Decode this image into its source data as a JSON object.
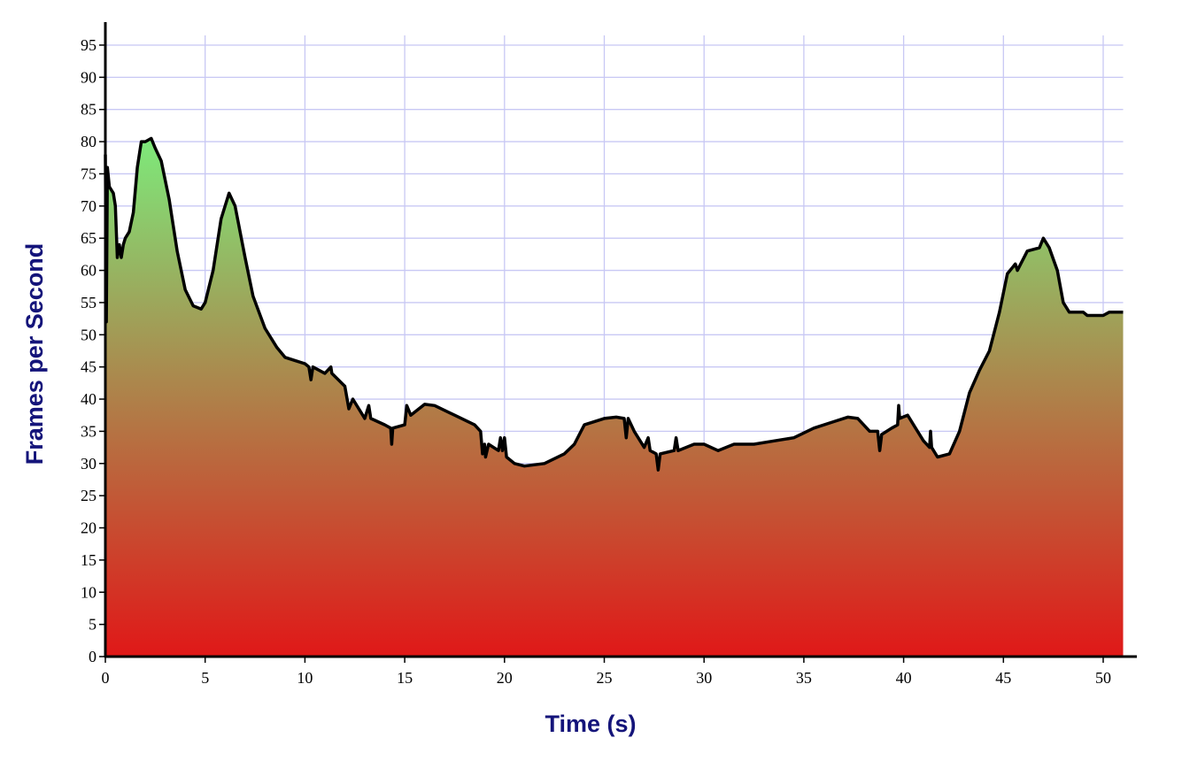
{
  "chart_data": {
    "type": "area",
    "x_label": "Time (s)",
    "y_label": "Frames per Second",
    "x": [
      0,
      0.05,
      0.1,
      0.2,
      0.4,
      0.5,
      0.6,
      0.7,
      0.8,
      0.9,
      1.0,
      1.2,
      1.4,
      1.6,
      1.8,
      2.0,
      2.3,
      2.5,
      2.8,
      3.2,
      3.6,
      4.0,
      4.4,
      4.8,
      5.0,
      5.4,
      5.8,
      6.2,
      6.5,
      7.0,
      7.4,
      8.0,
      8.6,
      9.0,
      9.5,
      10.0,
      10.2,
      10.3,
      10.4,
      11.0,
      11.3,
      11.35,
      12.0,
      12.2,
      12.4,
      13.0,
      13.2,
      13.3,
      14.0,
      14.3,
      14.35,
      14.4,
      15.0,
      15.1,
      15.3,
      16.0,
      16.5,
      17.5,
      18.5,
      18.8,
      18.9,
      19.0,
      19.05,
      19.2,
      19.7,
      19.8,
      19.9,
      20.0,
      20.1,
      20.5,
      21.0,
      22.0,
      23.0,
      23.5,
      24.0,
      25.0,
      25.6,
      26.0,
      26.1,
      26.2,
      26.5,
      27.0,
      27.2,
      27.3,
      27.6,
      27.7,
      27.8,
      28.5,
      28.6,
      28.7,
      29.5,
      30.0,
      30.7,
      31.5,
      32.5,
      33.5,
      34.5,
      35.5,
      36.5,
      37.2,
      37.7,
      38.3,
      38.7,
      38.8,
      38.9,
      39.4,
      39.7,
      39.75,
      39.8,
      40.2,
      40.6,
      41.0,
      41.3,
      41.35,
      41.4,
      41.7,
      42.3,
      42.8,
      43.3,
      43.8,
      44.3,
      44.8,
      45.2,
      45.6,
      45.7,
      46.2,
      46.8,
      47.0,
      47.3,
      47.7,
      48.0,
      48.3,
      49.0,
      49.2,
      50.0,
      50.3,
      51.0
    ],
    "values": [
      78,
      52,
      76,
      73,
      72,
      70,
      62,
      64,
      62,
      64,
      65,
      66,
      69,
      76,
      80,
      80,
      80.5,
      79,
      77,
      71,
      63,
      57,
      54.5,
      54,
      55,
      60,
      68,
      72,
      70,
      62,
      56,
      51,
      48,
      46.5,
      46,
      45.5,
      45,
      43,
      45,
      44,
      45,
      44,
      42,
      38.5,
      40,
      37,
      39,
      37,
      36,
      35.5,
      33,
      35.5,
      36,
      39,
      37.5,
      39.2,
      39,
      37.5,
      36,
      35,
      31.5,
      33,
      31,
      33,
      32,
      34,
      32,
      34,
      31,
      30,
      29.6,
      30,
      31.5,
      33,
      36,
      37,
      37.2,
      37,
      34,
      37,
      35,
      32.5,
      34,
      32,
      31.5,
      29,
      31.5,
      32,
      34,
      32,
      33,
      33,
      32,
      33,
      33,
      33.5,
      34,
      35.5,
      36.5,
      37.2,
      37,
      35,
      35,
      32,
      34.5,
      35.5,
      36,
      39,
      37,
      37.5,
      35.5,
      33.5,
      32.5,
      35,
      32.5,
      31,
      31.5,
      35,
      41,
      44.5,
      47.5,
      53.5,
      59.5,
      61,
      60,
      63,
      63.5,
      65,
      63.5,
      60,
      55,
      53.5,
      53.5,
      53,
      53,
      53.5,
      53.5
    ],
    "xlim": [
      0,
      51
    ],
    "ylim": [
      0,
      96.5
    ],
    "xticks": [
      0,
      5,
      10,
      15,
      20,
      25,
      30,
      35,
      40,
      45,
      50
    ],
    "yticks": [
      0,
      5,
      10,
      15,
      20,
      25,
      30,
      35,
      40,
      45,
      50,
      55,
      60,
      65,
      70,
      75,
      80,
      85,
      90,
      95
    ],
    "grid": true,
    "line_color": "#000000",
    "fill_gradient": [
      "#7ee87a",
      "#e01818"
    ]
  }
}
